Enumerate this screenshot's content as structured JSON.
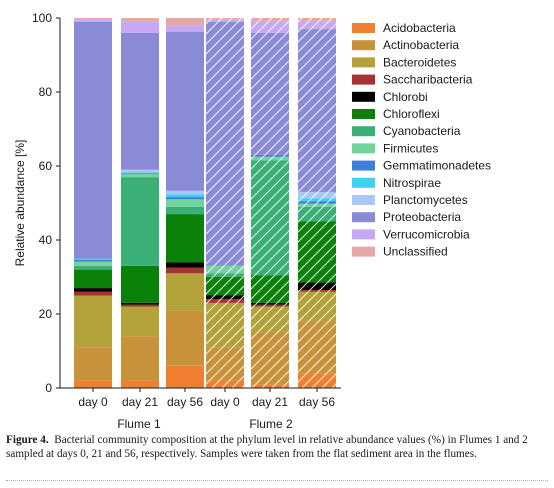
{
  "chart_data": {
    "type": "bar",
    "stacked": true,
    "ylabel": "Relative abundance [%]",
    "xlabel": "",
    "ylim": [
      0,
      100
    ],
    "yticks": [
      0,
      20,
      40,
      60,
      80,
      100
    ],
    "categories": [
      "day 0",
      "day 21",
      "day 56",
      "day 0",
      "day 21",
      "day 56"
    ],
    "groups": [
      {
        "label": "Flume 1",
        "bars": [
          0,
          1,
          2
        ],
        "hatched": false
      },
      {
        "label": "Flume 2",
        "bars": [
          3,
          4,
          5
        ],
        "hatched": true
      }
    ],
    "legend_position": "right",
    "grid": false,
    "series": [
      {
        "name": "Acidobacteria",
        "color": "#f07f2f",
        "values": [
          2,
          2,
          6,
          2,
          1,
          4
        ]
      },
      {
        "name": "Actinobacteria",
        "color": "#c8923a",
        "values": [
          9,
          12,
          15,
          9,
          14,
          14
        ]
      },
      {
        "name": "Bacteroidetes",
        "color": "#b3a23a",
        "values": [
          14,
          8,
          10,
          12,
          7,
          8
        ]
      },
      {
        "name": "Saccharibacteria",
        "color": "#a63232",
        "values": [
          1,
          0.5,
          1.5,
          1,
          0.5,
          0.5
        ]
      },
      {
        "name": "Chlorobi",
        "color": "#000000",
        "values": [
          1,
          0.5,
          1.5,
          1,
          0.5,
          2
        ]
      },
      {
        "name": "Chloroflexi",
        "color": "#0a820a",
        "values": [
          5,
          10,
          13,
          5,
          7.5,
          16.5
        ]
      },
      {
        "name": "Cyanobacteria",
        "color": "#3aaf76",
        "values": [
          1,
          24,
          2,
          1,
          31,
          4
        ]
      },
      {
        "name": "Firmicutes",
        "color": "#72d39b",
        "values": [
          1.2,
          0.8,
          2,
          2,
          1,
          0.8
        ]
      },
      {
        "name": "Gemmatimonadetes",
        "color": "#3f7fd9",
        "values": [
          0.4,
          0.2,
          0.6,
          0,
          0.5,
          0.7
        ]
      },
      {
        "name": "Nitrospirae",
        "color": "#3ed2f1",
        "values": [
          0.4,
          0.3,
          0.7,
          0,
          0,
          0.8
        ]
      },
      {
        "name": "Planctomycetes",
        "color": "#a9c8f5",
        "values": [
          0,
          0.7,
          1,
          0,
          0,
          1.7
        ]
      },
      {
        "name": "Proteobacteria",
        "color": "#8a8ad6",
        "values": [
          64,
          37,
          43,
          66,
          33,
          44
        ]
      },
      {
        "name": "Verrucomicrobia",
        "color": "#c7a8f5",
        "values": [
          0.5,
          3,
          1.7,
          0.5,
          3,
          2
        ]
      },
      {
        "name": "Unclassified",
        "color": "#e6a7a7",
        "values": [
          0.5,
          1,
          2,
          0.5,
          1,
          1
        ]
      }
    ]
  },
  "caption": {
    "label": "Figure 4.",
    "text": "Bacterial community composition at the phylum level in relative abundance values (%) in Flumes 1 and 2 sampled at days 0, 21 and 56, respectively. Samples were taken from the flat sediment area in the flumes."
  }
}
